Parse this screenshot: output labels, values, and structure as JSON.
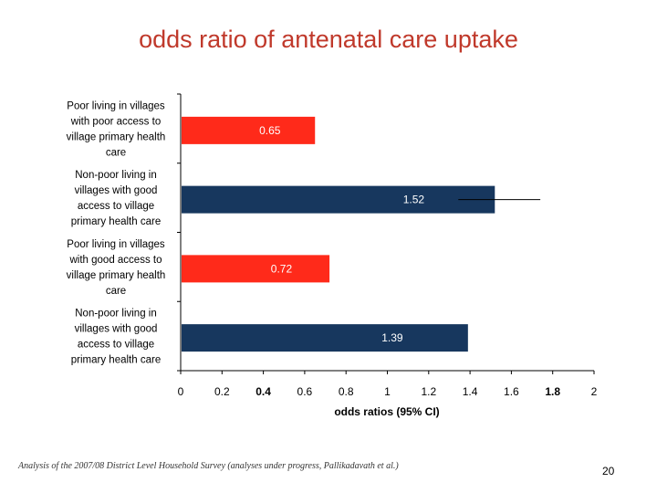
{
  "slide": {
    "title": "odds ratio of antenatal care uptake",
    "source": "Analysis of the 2007/08 District Level Household Survey (analyses under progress, Pallikadavath et al.)",
    "page_number": "20"
  },
  "chart_data": {
    "type": "bar",
    "orientation": "horizontal",
    "title": "",
    "xlabel": "odds ratios (95% CI)",
    "ylabel": "",
    "xlim": [
      0,
      2
    ],
    "xticks": [
      "0",
      "0.2",
      "0.4",
      "0.6",
      "0.8",
      "1",
      "1.2",
      "1.4",
      "1.6",
      "1.8",
      "2"
    ],
    "bold_ticks": [
      "0.4",
      "1.8"
    ],
    "grid": false,
    "categories": [
      [
        "Poor living in villages",
        "with poor access to",
        "village primary health",
        "care"
      ],
      [
        "Non-poor living in",
        "villages with good",
        "access to village",
        "primary health care"
      ],
      [
        "Poor living in villages",
        "with good access to",
        "village primary health",
        "care"
      ],
      [
        "Non-poor living in",
        "villages with good",
        "access to village",
        "primary health care"
      ]
    ],
    "values": [
      0.65,
      1.52,
      0.72,
      1.39
    ],
    "value_labels": [
      "0.65",
      "1.52",
      "0.72",
      "1.39"
    ],
    "ci_upper": [
      null,
      1.74,
      null,
      null
    ],
    "colors": [
      "#ff2a1a",
      "#17375e",
      "#ff2a1a",
      "#17375e"
    ]
  }
}
